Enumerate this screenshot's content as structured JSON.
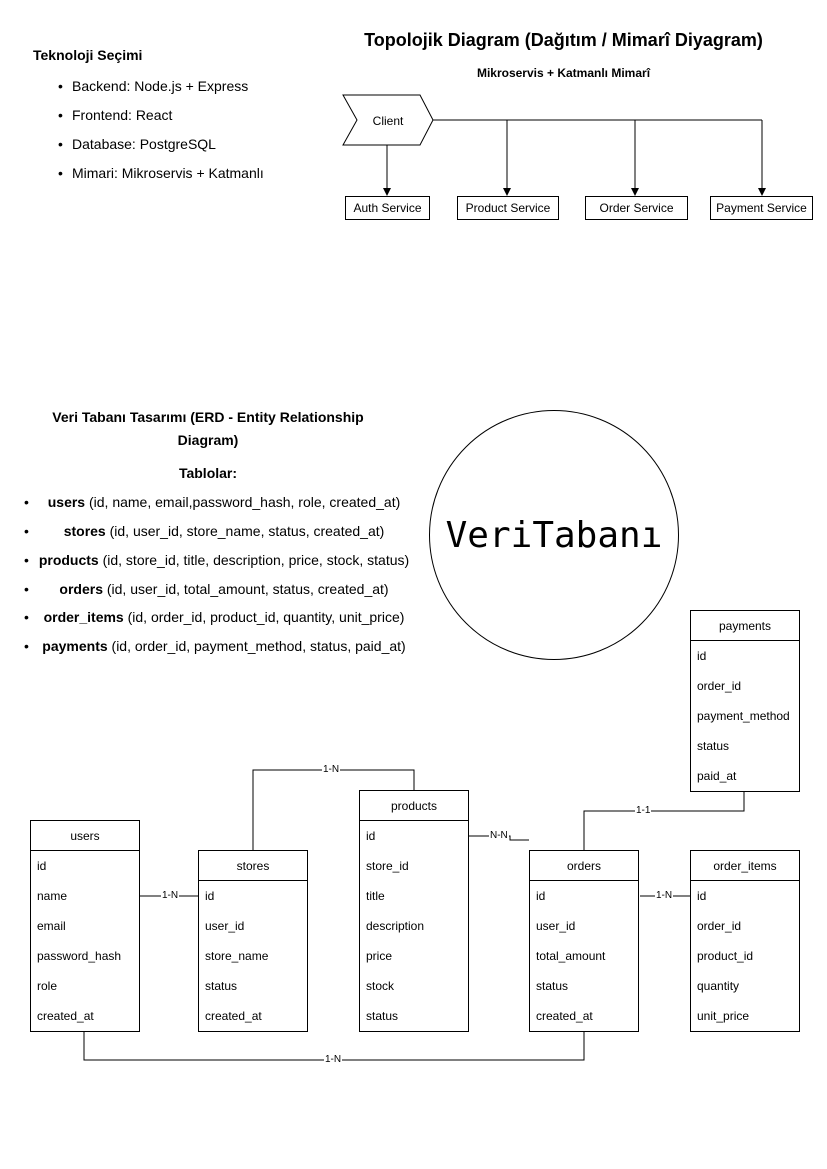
{
  "technology": {
    "title": "Teknoloji Seçimi",
    "items": [
      "Backend: Node.js + Express",
      "Frontend: React",
      "Database: PostgreSQL",
      "Mimari: Mikroservis + Katmanlı"
    ]
  },
  "topology": {
    "title": "Topolojik Diagram (Dağıtım / Mimarî Diyagram)",
    "subtitle": "Mikroservis + Katmanlı Mimarî",
    "client": "Client",
    "services": [
      "Auth Service",
      "Product Service",
      "Order Service",
      "Payment Service"
    ]
  },
  "erd": {
    "title_line1": "Veri Tabanı Tasarımı (ERD - Entity Relationship",
    "title_line2": "Diagram)",
    "tables_label": "Tablolar:",
    "table_list": [
      {
        "name": "users",
        "cols": "(id, name, email,password_hash, role, created_at)"
      },
      {
        "name": "stores",
        "cols": "(id, user_id, store_name, status, created_at)"
      },
      {
        "name": "products",
        "cols": "(id, store_id, title, description, price, stock, status)"
      },
      {
        "name": "orders",
        "cols": "(id, user_id, total_amount, status, created_at)"
      },
      {
        "name": "order_items",
        "cols": "(id, order_id, product_id, quantity, unit_price)"
      },
      {
        "name": "payments",
        "cols": "(id, order_id, payment_method, status, paid_at)"
      }
    ],
    "db_circle_label": "VeriTabanı"
  },
  "entities": {
    "users": {
      "name": "users",
      "fields": [
        "id",
        "name",
        "email",
        "password_hash",
        "role",
        "created_at"
      ]
    },
    "stores": {
      "name": "stores",
      "fields": [
        "id",
        "user_id",
        "store_name",
        "status",
        "created_at"
      ]
    },
    "products": {
      "name": "products",
      "fields": [
        "id",
        "store_id",
        "title",
        "description",
        "price",
        "stock",
        "status"
      ]
    },
    "orders": {
      "name": "orders",
      "fields": [
        "id",
        "user_id",
        "total_amount",
        "status",
        "created_at"
      ]
    },
    "order_items": {
      "name": "order_items",
      "fields": [
        "id",
        "order_id",
        "product_id",
        "quantity",
        "unit_price"
      ]
    },
    "payments": {
      "name": "payments",
      "fields": [
        "id",
        "order_id",
        "payment_method",
        "status",
        "paid_at"
      ]
    }
  },
  "relations": {
    "users_stores": "1-N",
    "stores_products": "1-N",
    "products_orders": "N-N",
    "orders_order_items": "1-N",
    "orders_payments": "1-1",
    "users_orders": "1-N"
  }
}
